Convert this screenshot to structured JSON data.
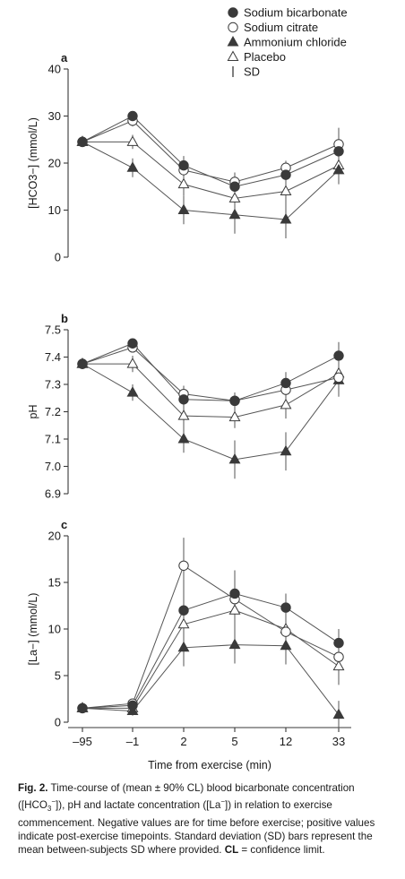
{
  "legend": {
    "items": [
      {
        "label": "Sodium bicarbonate",
        "marker": "filled-circle"
      },
      {
        "label": "Sodium citrate",
        "marker": "open-circle"
      },
      {
        "label": "Ammonium chloride",
        "marker": "filled-triangle"
      },
      {
        "label": "Placebo",
        "marker": "open-triangle"
      },
      {
        "label": "SD",
        "marker": "bar"
      }
    ]
  },
  "caption": {
    "fig_label": "Fig. 2.",
    "text_1": "Time-course of (mean ± 90% CL) blood bicarbonate concentration ([HCO",
    "sub_1": "3",
    "sup_1": "−",
    "text_2": "]), pH and lactate concentration ([La",
    "sup_2": "−",
    "text_3": "]) in relation to exercise commencement. Negative values are for time before exercise; positive values indicate post-exercise timepoints. Standard deviation (SD) bars represent the mean between-subjects SD where provided.",
    "cl_label": "CL",
    "cl_text": " = confidence limit."
  },
  "colors": {
    "dark": "#3a3a3a",
    "line": "#555555",
    "marker_fill": "#3a3a3a",
    "open_fill": "#ffffff"
  },
  "chart_data": [
    {
      "type": "line",
      "panel_label": "a",
      "ylabel": "[HCO3−] (mmol/L)",
      "x": [
        "–95",
        "–1",
        "2",
        "5",
        "12",
        "33"
      ],
      "ylim": [
        0,
        40
      ],
      "yticks": [
        0,
        10,
        20,
        30,
        40
      ],
      "series": [
        {
          "name": "Sodium bicarbonate",
          "marker": "filled-circle",
          "values": [
            24.5,
            30.0,
            19.5,
            15.0,
            17.5,
            22.5
          ],
          "sd": [
            0,
            1.0,
            2.0,
            2.0,
            2.0,
            2.5
          ]
        },
        {
          "name": "Sodium citrate",
          "marker": "open-circle",
          "values": [
            24.5,
            29.0,
            18.5,
            16.0,
            19.0,
            24.0
          ],
          "sd": [
            0,
            1.2,
            1.8,
            2.0,
            1.5,
            3.5
          ]
        },
        {
          "name": "Ammonium chloride",
          "marker": "filled-triangle",
          "values": [
            24.5,
            19.0,
            10.0,
            9.0,
            8.0,
            18.5
          ],
          "sd": [
            0,
            2.0,
            3.0,
            4.0,
            4.0,
            3.0
          ]
        },
        {
          "name": "Placebo",
          "marker": "open-triangle",
          "values": [
            24.5,
            24.5,
            15.5,
            12.5,
            14.0,
            19.5
          ],
          "sd": [
            0,
            1.5,
            2.5,
            2.5,
            3.0,
            3.0
          ]
        }
      ]
    },
    {
      "type": "line",
      "panel_label": "b",
      "ylabel": "pH",
      "x": [
        "–95",
        "–1",
        "2",
        "5",
        "12",
        "33"
      ],
      "ylim": [
        6.9,
        7.5
      ],
      "yticks": [
        6.9,
        7.0,
        7.1,
        7.2,
        7.3,
        7.4,
        7.5
      ],
      "ytick_labels": [
        "6.9",
        "7.0",
        "7.1",
        "7.2",
        "7.3",
        "7.4",
        "7.5"
      ],
      "series": [
        {
          "name": "Sodium bicarbonate",
          "marker": "filled-circle",
          "values": [
            7.375,
            7.45,
            7.245,
            7.24,
            7.305,
            7.405
          ],
          "sd": [
            0,
            0.01,
            0.03,
            0.03,
            0.04,
            0.05
          ]
        },
        {
          "name": "Sodium citrate",
          "marker": "open-circle",
          "values": [
            7.375,
            7.435,
            7.265,
            7.24,
            7.28,
            7.325
          ],
          "sd": [
            0,
            0.015,
            0.03,
            0.03,
            0.04,
            0.06
          ]
        },
        {
          "name": "Ammonium chloride",
          "marker": "filled-triangle",
          "values": [
            7.375,
            7.27,
            7.1,
            7.025,
            7.055,
            7.315
          ],
          "sd": [
            0,
            0.03,
            0.05,
            0.07,
            0.07,
            0.06
          ]
        },
        {
          "name": "Placebo",
          "marker": "open-triangle",
          "values": [
            7.375,
            7.375,
            7.185,
            7.18,
            7.225,
            7.34
          ],
          "sd": [
            0,
            0.03,
            0.04,
            0.04,
            0.05,
            0.06
          ]
        }
      ]
    },
    {
      "type": "line",
      "panel_label": "c",
      "ylabel": "[La−] (mmol/L)",
      "xlabel": "Time from exercise (min)",
      "x": [
        "–95",
        "–1",
        "2",
        "5",
        "12",
        "33"
      ],
      "ylim": [
        0,
        20
      ],
      "yticks": [
        0,
        5,
        10,
        15,
        20
      ],
      "series": [
        {
          "name": "Sodium bicarbonate",
          "marker": "filled-circle",
          "values": [
            1.5,
            1.8,
            12.0,
            13.8,
            12.3,
            8.5
          ],
          "sd": [
            0,
            0.5,
            3.0,
            2.5,
            1.5,
            1.5
          ]
        },
        {
          "name": "Sodium citrate",
          "marker": "open-circle",
          "values": [
            1.5,
            2.0,
            16.8,
            13.2,
            9.7,
            7.0
          ],
          "sd": [
            0,
            0.5,
            3.0,
            2.5,
            2.5,
            2.0
          ]
        },
        {
          "name": "Ammonium chloride",
          "marker": "filled-triangle",
          "values": [
            1.5,
            1.2,
            8.0,
            8.3,
            8.2,
            0.8
          ],
          "sd": [
            0,
            0.5,
            2.0,
            2.0,
            2.0,
            1.5
          ]
        },
        {
          "name": "Placebo",
          "marker": "open-triangle",
          "values": [
            1.5,
            1.5,
            10.5,
            12.0,
            10.0,
            6.0
          ],
          "sd": [
            0,
            0.5,
            2.5,
            2.5,
            2.0,
            2.0
          ]
        }
      ]
    }
  ]
}
